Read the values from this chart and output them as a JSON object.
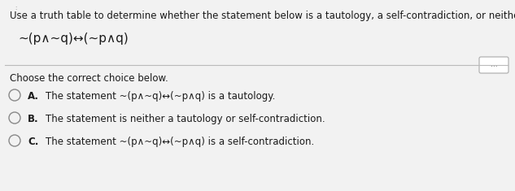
{
  "background_color": "#f2f2f2",
  "top_text": "Use a truth table to determine whether the statement below is a tautology, a self-contradiction, or neither.",
  "formula_main": "~(p∧~q)↔(~p∧q)",
  "choose_text": "Choose the correct choice below.",
  "options": [
    {
      "label": "A.",
      "text": "The statement ~(p∧~q)↔(~p∧q) is a tautology."
    },
    {
      "label": "B.",
      "text": "The statement is neither a tautology or self-contradiction."
    },
    {
      "label": "C.",
      "text": "The statement ~(p∧~q)↔(~p∧q) is a self-contradiction."
    }
  ],
  "font_color": "#1a1a1a",
  "font_size_top": 8.5,
  "font_size_formula": 11.0,
  "font_size_body": 8.5,
  "circle_color": "#888888",
  "dots_text": "..."
}
